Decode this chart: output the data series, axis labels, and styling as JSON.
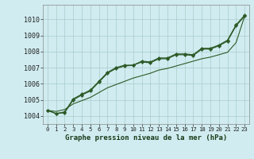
{
  "title": "Graphe pression niveau de la mer (hPa)",
  "bg_color": "#d0ecf0",
  "grid_color": "#a8cccc",
  "line_color": "#2d5a27",
  "ylim": [
    1003.5,
    1010.9
  ],
  "xlim": [
    -0.5,
    23.5
  ],
  "yticks": [
    1004,
    1005,
    1006,
    1007,
    1008,
    1009,
    1010
  ],
  "xtick_labels": [
    "0",
    "1",
    "2",
    "3",
    "4",
    "5",
    "6",
    "7",
    "8",
    "9",
    "10",
    "11",
    "12",
    "13",
    "14",
    "15",
    "16",
    "17",
    "18",
    "19",
    "20",
    "21",
    "22",
    "23"
  ],
  "series_upper": [
    1004.35,
    1004.15,
    1004.2,
    1005.0,
    1005.3,
    1005.55,
    1006.1,
    1006.65,
    1006.95,
    1007.1,
    1007.15,
    1007.35,
    1007.3,
    1007.55,
    1007.55,
    1007.8,
    1007.8,
    1007.75,
    1008.15,
    1008.15,
    1008.35,
    1008.65,
    1009.6,
    1010.2
  ],
  "series_mid": [
    1004.35,
    1004.15,
    1004.25,
    1005.05,
    1005.35,
    1005.6,
    1006.15,
    1006.7,
    1007.0,
    1007.15,
    1007.15,
    1007.4,
    1007.35,
    1007.6,
    1007.6,
    1007.85,
    1007.85,
    1007.8,
    1008.2,
    1008.2,
    1008.4,
    1008.7,
    1009.65,
    1010.25
  ],
  "series_lower_straight": [
    1004.35,
    1004.28,
    1004.4,
    1004.75,
    1004.95,
    1005.15,
    1005.45,
    1005.75,
    1005.95,
    1006.15,
    1006.35,
    1006.5,
    1006.65,
    1006.85,
    1006.95,
    1007.1,
    1007.25,
    1007.4,
    1007.55,
    1007.65,
    1007.8,
    1007.95,
    1008.55,
    1010.2
  ]
}
